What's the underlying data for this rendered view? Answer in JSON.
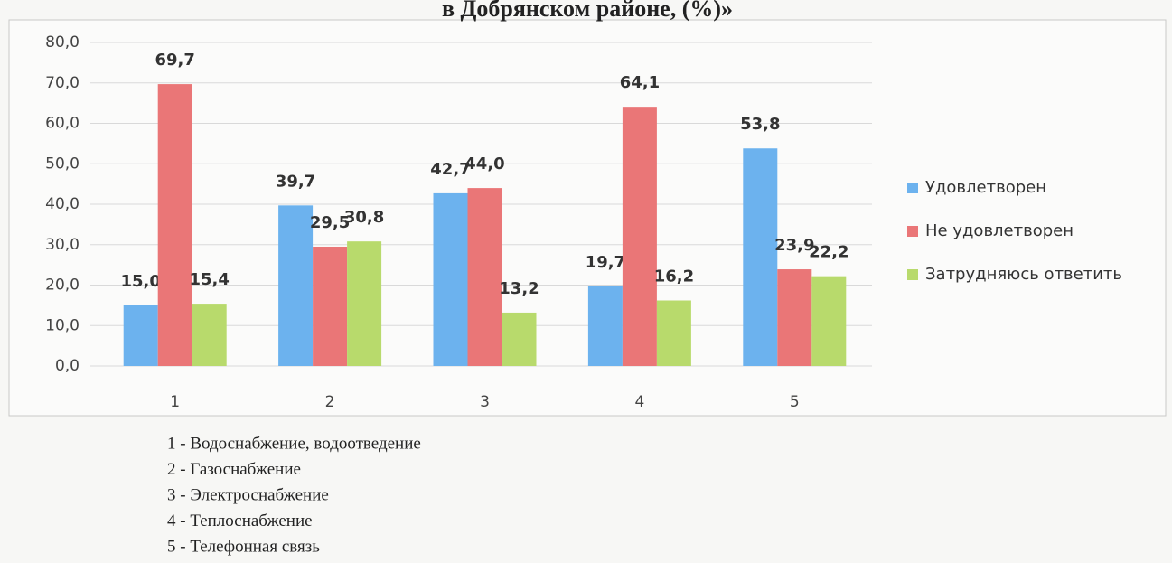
{
  "chart_data": {
    "type": "bar",
    "title": "в Добрянском районе, (%)»",
    "categories": [
      "1",
      "2",
      "3",
      "4",
      "5"
    ],
    "series": [
      {
        "name": "Удовлетворен",
        "color": "#6cb2ee",
        "values": [
          15.0,
          39.7,
          42.7,
          19.7,
          53.8
        ],
        "value_labels": [
          "15,0",
          "39,7",
          "42,7",
          "19,7",
          "53,8"
        ]
      },
      {
        "name": "Не удовлетворен",
        "color": "#ea7677",
        "values": [
          69.7,
          29.5,
          44.0,
          64.1,
          23.9
        ],
        "value_labels": [
          "69,7",
          "29,5",
          "44,0",
          "64,1",
          "23,9"
        ]
      },
      {
        "name": "Затрудняюсь ответить",
        "color": "#b8da6c",
        "values": [
          15.4,
          30.8,
          13.2,
          16.2,
          22.2
        ],
        "value_labels": [
          "15,4",
          "30,8",
          "13,2",
          "16,2",
          "22,2"
        ]
      }
    ],
    "ylim": [
      0,
      80
    ],
    "yticks": [
      {
        "value": 0,
        "label": "0,0"
      },
      {
        "value": 10,
        "label": "10,0"
      },
      {
        "value": 20,
        "label": "20,0"
      },
      {
        "value": 30,
        "label": "30,0"
      },
      {
        "value": 40,
        "label": "40,0"
      },
      {
        "value": 50,
        "label": "50,0"
      },
      {
        "value": 60,
        "label": "60,0"
      },
      {
        "value": 70,
        "label": "70,0"
      },
      {
        "value": 80,
        "label": "80,0"
      }
    ],
    "grid": true,
    "legend": "right",
    "footnotes": [
      "1 - Водоснабжение, водоотведение",
      "2 - Газоснабжение",
      "3 - Электроснабжение",
      "4 - Теплоснабжение",
      "5 - Телефонная связь"
    ]
  }
}
